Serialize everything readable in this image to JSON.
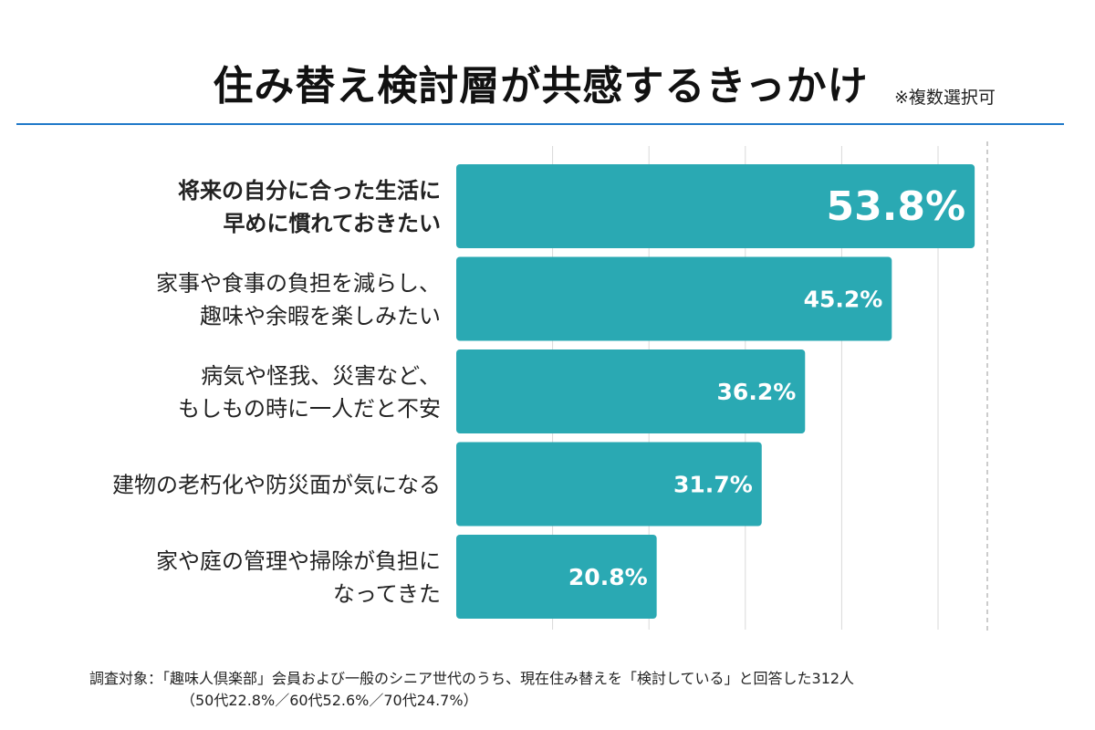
{
  "header": {
    "title": "住み替え検討層が共感するきっかけ",
    "note": "※複数選択可"
  },
  "colors": {
    "bar": "#2aa9b3",
    "rule": "#1f78c8",
    "grid": "#d9d9d9"
  },
  "chart_data": {
    "type": "bar",
    "orientation": "horizontal",
    "title": "住み替え検討層が共感するきっかけ",
    "unit": "%",
    "xlim": [
      0,
      60
    ],
    "grid": true,
    "categories": [
      [
        "将来の自分に合った生活に",
        "早めに慣れておきたい"
      ],
      [
        "家事や食事の負担を減らし、",
        "趣味や余暇を楽しみたい"
      ],
      [
        "病気や怪我、災害など、",
        "もしもの時に一人だと不安"
      ],
      [
        "建物の老朽化や防災面が気になる"
      ],
      [
        "家や庭の管理や掃除が負担に",
        "なってきた"
      ]
    ],
    "values": [
      53.8,
      45.2,
      36.2,
      31.7,
      20.8
    ],
    "value_labels": [
      "53.8%",
      "45.2%",
      "36.2%",
      "31.7%",
      "20.8%"
    ],
    "highlight_index": 0
  },
  "footnote": {
    "line1": "調査対象：「趣味人倶楽部」会員および一般のシニア世代のうち、現在住み替えを「検討している」と回答した312人",
    "line2": "（50代22.8%／60代52.6%／70代24.7%）"
  }
}
